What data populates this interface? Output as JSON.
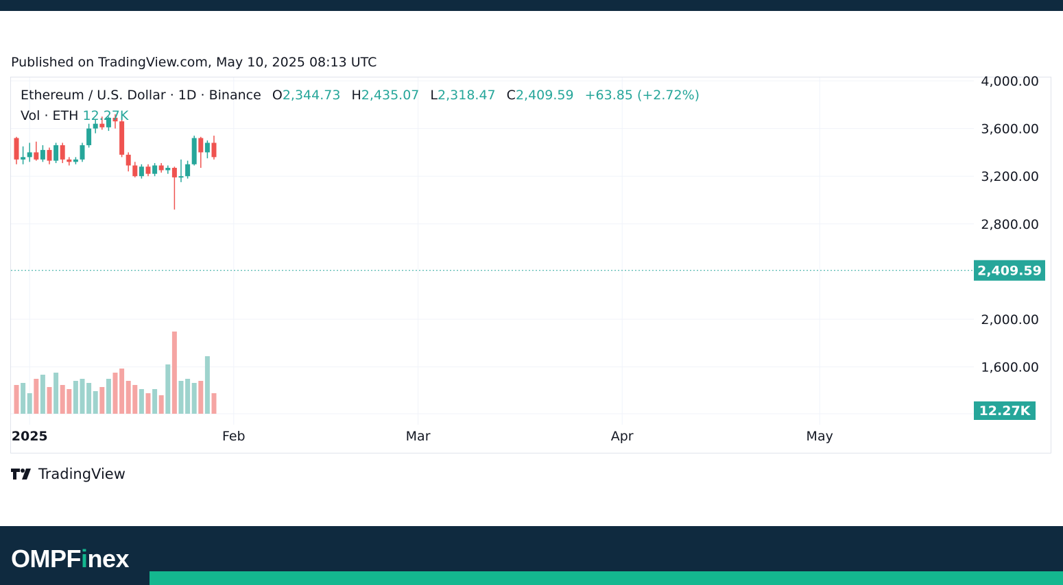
{
  "header": {
    "published": "Published on TradingView.com, May 10, 2025 08:13 UTC"
  },
  "legend": {
    "symbol": "Ethereum / U.S. Dollar · 1D · Binance",
    "o_label": "O",
    "o_value": "2,344.73",
    "h_label": "H",
    "h_value": "2,435.07",
    "l_label": "L",
    "l_value": "2,318.47",
    "c_label": "C",
    "c_value": "2,409.59",
    "change": "+63.85 (+2.72%)",
    "vol_label": "Vol · ETH",
    "vol_value": "12.27K"
  },
  "branding": {
    "tv_text": "TradingView",
    "brand_main": "OMPF",
    "brand_accent": "i",
    "brand_tail": "nex"
  },
  "colors": {
    "up": "#26a69a",
    "down": "#ef5350",
    "up_vol": "#9ed3cd",
    "down_vol": "#f5a5a3",
    "footer_bg": "#0f2a3f",
    "footer_accent": "#14b78f"
  },
  "chart_data": {
    "type": "candlestick",
    "y_ticks": [
      "1,600.00",
      "2,000.00",
      "2,800.00",
      "3,200.00",
      "3,600.00",
      "4,000.00"
    ],
    "y_tick_values": [
      1600,
      2000,
      2800,
      3200,
      3600,
      4000
    ],
    "ylim": [
      1300,
      4000
    ],
    "x_ticks": [
      "2025",
      "Feb",
      "Mar",
      "Apr",
      "May"
    ],
    "x_tick_dates": [
      "2025-01-01",
      "2025-02-01",
      "2025-03-01",
      "2025-04-01",
      "2025-05-01"
    ],
    "last_price_label": "2,409.59",
    "last_price": 2409.59,
    "last_volume_label": "12.27K",
    "grid": true,
    "start_date": "2024-12-30",
    "candles": [
      {
        "d": "2024-12-30",
        "o": 3520,
        "h": 3530,
        "l": 3300,
        "c": 3340,
        "v": 14
      },
      {
        "d": "2024-12-31",
        "o": 3340,
        "h": 3450,
        "l": 3300,
        "c": 3360,
        "v": 15
      },
      {
        "d": "2025-01-01",
        "o": 3360,
        "h": 3480,
        "l": 3320,
        "c": 3400,
        "v": 10
      },
      {
        "d": "2025-01-02",
        "o": 3400,
        "h": 3490,
        "l": 3330,
        "c": 3340,
        "v": 17
      },
      {
        "d": "2025-01-03",
        "o": 3340,
        "h": 3460,
        "l": 3320,
        "c": 3420,
        "v": 19
      },
      {
        "d": "2025-01-04",
        "o": 3420,
        "h": 3440,
        "l": 3300,
        "c": 3330,
        "v": 13
      },
      {
        "d": "2025-01-05",
        "o": 3330,
        "h": 3480,
        "l": 3310,
        "c": 3460,
        "v": 20
      },
      {
        "d": "2025-01-06",
        "o": 3460,
        "h": 3480,
        "l": 3310,
        "c": 3340,
        "v": 14
      },
      {
        "d": "2025-01-07",
        "o": 3340,
        "h": 3360,
        "l": 3290,
        "c": 3320,
        "v": 12
      },
      {
        "d": "2025-01-08",
        "o": 3320,
        "h": 3360,
        "l": 3300,
        "c": 3340,
        "v": 16
      },
      {
        "d": "2025-01-09",
        "o": 3340,
        "h": 3480,
        "l": 3320,
        "c": 3460,
        "v": 17
      },
      {
        "d": "2025-01-10",
        "o": 3460,
        "h": 3640,
        "l": 3440,
        "c": 3600,
        "v": 15
      },
      {
        "d": "2025-01-11",
        "o": 3600,
        "h": 3680,
        "l": 3560,
        "c": 3640,
        "v": 11
      },
      {
        "d": "2025-01-12",
        "o": 3640,
        "h": 3700,
        "l": 3590,
        "c": 3610,
        "v": 13
      },
      {
        "d": "2025-01-13",
        "o": 3610,
        "h": 3700,
        "l": 3580,
        "c": 3690,
        "v": 17
      },
      {
        "d": "2025-01-14",
        "o": 3690,
        "h": 3720,
        "l": 3600,
        "c": 3660,
        "v": 20
      },
      {
        "d": "2025-01-15",
        "o": 3660,
        "h": 3700,
        "l": 3360,
        "c": 3380,
        "v": 22
      },
      {
        "d": "2025-01-16",
        "o": 3380,
        "h": 3400,
        "l": 3240,
        "c": 3290,
        "v": 16
      },
      {
        "d": "2025-01-17",
        "o": 3290,
        "h": 3320,
        "l": 3190,
        "c": 3200,
        "v": 14
      },
      {
        "d": "2025-01-18",
        "o": 3200,
        "h": 3300,
        "l": 3180,
        "c": 3280,
        "v": 12
      },
      {
        "d": "2025-01-19",
        "o": 3280,
        "h": 3300,
        "l": 3200,
        "c": 3220,
        "v": 10
      },
      {
        "d": "2025-01-20",
        "o": 3220,
        "h": 3310,
        "l": 3200,
        "c": 3290,
        "v": 12
      },
      {
        "d": "2025-01-21",
        "o": 3290,
        "h": 3310,
        "l": 3230,
        "c": 3250,
        "v": 9
      },
      {
        "d": "2025-01-22",
        "o": 3250,
        "h": 3290,
        "l": 3220,
        "c": 3270,
        "v": 24
      },
      {
        "d": "2025-01-23",
        "o": 3270,
        "h": 3280,
        "l": 2920,
        "c": 3190,
        "v": 40
      },
      {
        "d": "2025-01-24",
        "o": 3190,
        "h": 3340,
        "l": 3150,
        "c": 3200,
        "v": 16
      },
      {
        "d": "2025-01-25",
        "o": 3200,
        "h": 3330,
        "l": 3180,
        "c": 3300,
        "v": 17
      },
      {
        "d": "2025-01-26",
        "o": 3300,
        "h": 3540,
        "l": 3290,
        "c": 3520,
        "v": 15
      },
      {
        "d": "2025-01-27",
        "o": 3520,
        "h": 3530,
        "l": 3270,
        "c": 3400,
        "v": 16
      },
      {
        "d": "2025-01-28",
        "o": 3400,
        "h": 3500,
        "l": 3350,
        "c": 3480,
        "v": 28
      },
      {
        "d": "2025-01-29",
        "o": 3480,
        "h": 3540,
        "l": 3340,
        "c": 3360,
        "v": 10
      }
    ]
  }
}
